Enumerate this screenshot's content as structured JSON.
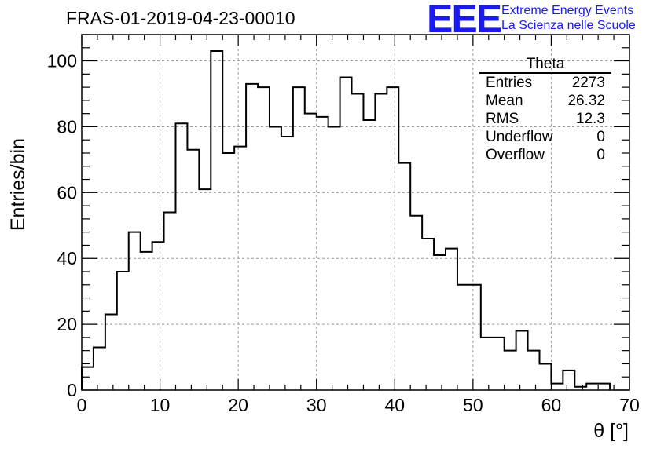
{
  "chart_data": {
    "type": "bar",
    "title": "FRAS-01-2019-04-23-00010",
    "xlabel": "θ [°]",
    "ylabel": "Entries/bin",
    "xlim": [
      0,
      70
    ],
    "ylim": [
      0,
      108
    ],
    "grid": true,
    "bin_width": 1.5,
    "x_ticks": [
      0,
      10,
      20,
      30,
      40,
      50,
      60,
      70
    ],
    "y_ticks": [
      0,
      20,
      40,
      60,
      80,
      100
    ],
    "bins": [
      {
        "x": 0,
        "value": 7
      },
      {
        "x": 1.5,
        "value": 13
      },
      {
        "x": 3,
        "value": 23
      },
      {
        "x": 4.5,
        "value": 36
      },
      {
        "x": 6,
        "value": 48
      },
      {
        "x": 7.5,
        "value": 42
      },
      {
        "x": 9,
        "value": 45
      },
      {
        "x": 10.5,
        "value": 54
      },
      {
        "x": 12,
        "value": 81
      },
      {
        "x": 13.5,
        "value": 73
      },
      {
        "x": 15,
        "value": 61
      },
      {
        "x": 16.5,
        "value": 103
      },
      {
        "x": 18,
        "value": 72
      },
      {
        "x": 19.5,
        "value": 74
      },
      {
        "x": 21,
        "value": 93
      },
      {
        "x": 22.5,
        "value": 92
      },
      {
        "x": 24,
        "value": 80
      },
      {
        "x": 25.5,
        "value": 77
      },
      {
        "x": 27,
        "value": 92
      },
      {
        "x": 28.5,
        "value": 84
      },
      {
        "x": 30,
        "value": 83
      },
      {
        "x": 31.5,
        "value": 80
      },
      {
        "x": 33,
        "value": 95
      },
      {
        "x": 34.5,
        "value": 90
      },
      {
        "x": 36,
        "value": 82
      },
      {
        "x": 37.5,
        "value": 90
      },
      {
        "x": 39,
        "value": 92
      },
      {
        "x": 40.5,
        "value": 69
      },
      {
        "x": 42,
        "value": 53
      },
      {
        "x": 43.5,
        "value": 46
      },
      {
        "x": 45,
        "value": 41
      },
      {
        "x": 46.5,
        "value": 43
      },
      {
        "x": 48,
        "value": 32
      },
      {
        "x": 49.5,
        "value": 32
      },
      {
        "x": 51,
        "value": 16
      },
      {
        "x": 52.5,
        "value": 16
      },
      {
        "x": 54,
        "value": 12
      },
      {
        "x": 55.5,
        "value": 18
      },
      {
        "x": 57,
        "value": 12
      },
      {
        "x": 58.5,
        "value": 8
      },
      {
        "x": 60,
        "value": 2
      },
      {
        "x": 61.5,
        "value": 6
      },
      {
        "x": 63,
        "value": 1
      },
      {
        "x": 64.5,
        "value": 2
      },
      {
        "x": 66,
        "value": 2
      }
    ],
    "stats": {
      "name": "Theta",
      "rows": [
        {
          "label": "Entries",
          "value": "2273"
        },
        {
          "label": "Mean",
          "value": "26.32"
        },
        {
          "label": "RMS",
          "value": "12.3"
        },
        {
          "label": "Underflow",
          "value": "0"
        },
        {
          "label": "Overflow",
          "value": "0"
        }
      ]
    }
  },
  "logo": {
    "mark": "EEE",
    "line1": "Extreme Energy Events",
    "line2": "La Scienza nelle Scuole"
  },
  "colors": {
    "logo": "#1a1aee",
    "line": "#000000",
    "grid": "#999999"
  }
}
